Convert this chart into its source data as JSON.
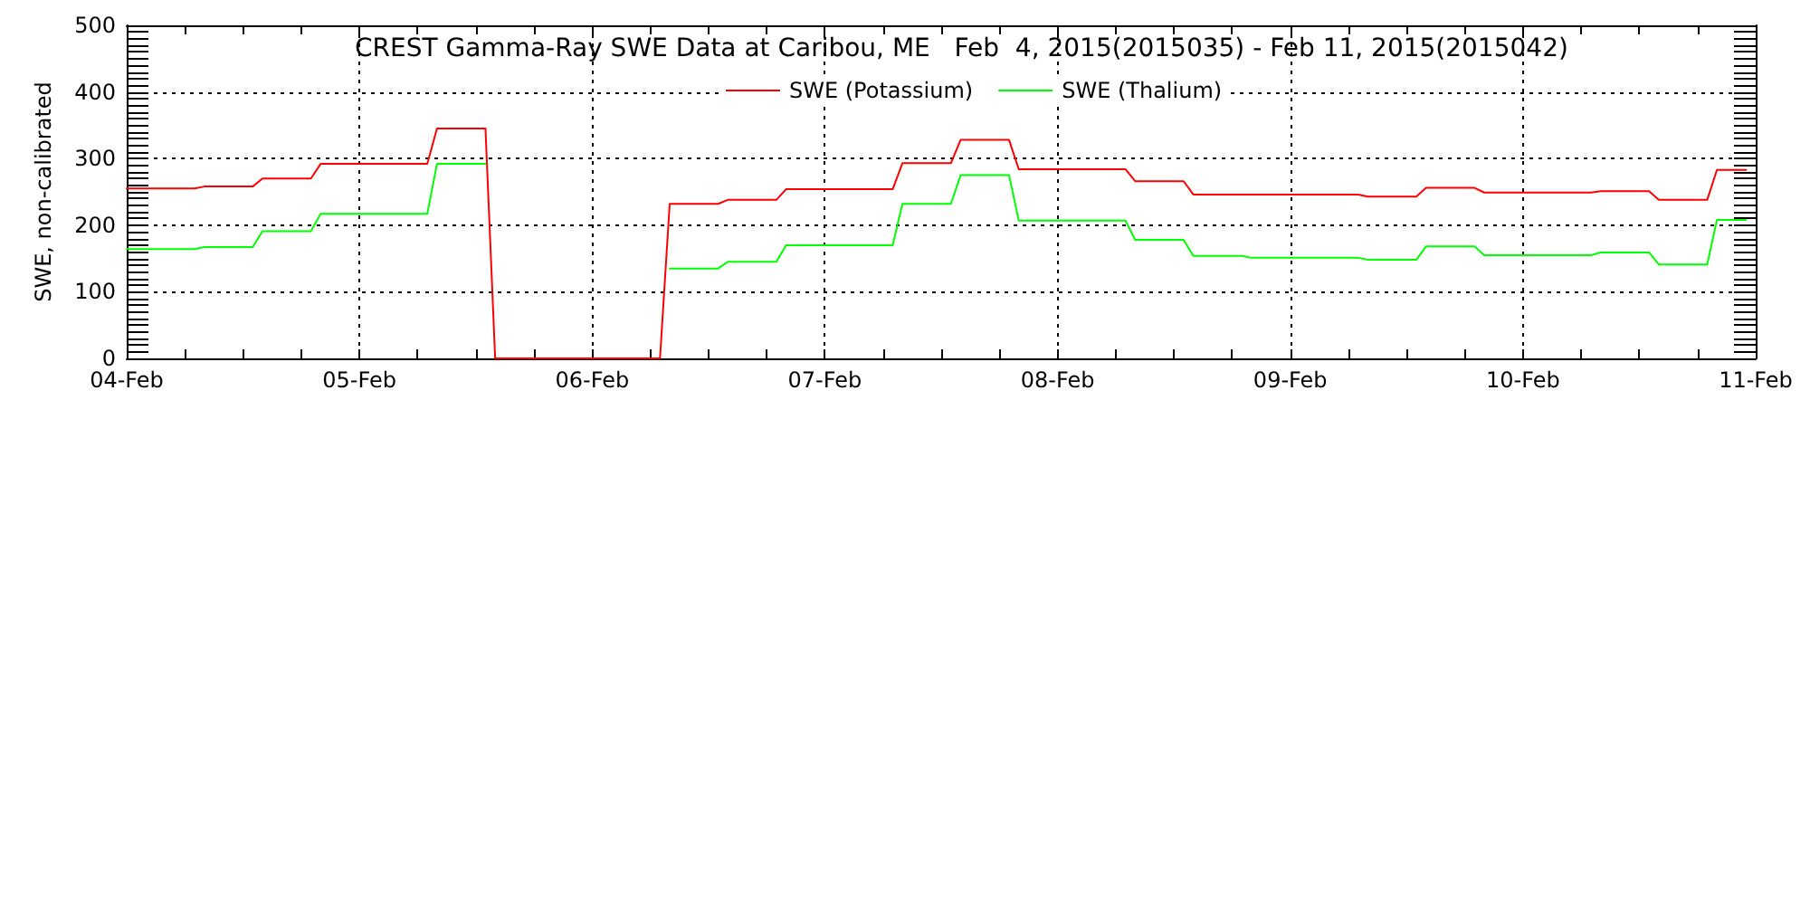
{
  "chart_data": {
    "type": "line",
    "title": "CREST Gamma-Ray SWE Data at Caribou, ME   Feb  4, 2015(2015035) - Feb 11, 2015(2015042)",
    "ylabel": "SWE, non-calibrated",
    "xlim": [
      "2015-02-04T00:00",
      "2015-02-11T00:00"
    ],
    "xticks": [
      {
        "value": "2015-02-04T00:00",
        "label": "04-Feb"
      },
      {
        "value": "2015-02-04T06:00",
        "label": null
      },
      {
        "value": "2015-02-04T12:00",
        "label": null
      },
      {
        "value": "2015-02-04T18:00",
        "label": null
      },
      {
        "value": "2015-02-05T00:00",
        "label": "05-Feb"
      },
      {
        "value": "2015-02-05T06:00",
        "label": null
      },
      {
        "value": "2015-02-05T12:00",
        "label": null
      },
      {
        "value": "2015-02-05T18:00",
        "label": null
      },
      {
        "value": "2015-02-06T00:00",
        "label": "06-Feb"
      },
      {
        "value": "2015-02-06T06:00",
        "label": null
      },
      {
        "value": "2015-02-06T12:00",
        "label": null
      },
      {
        "value": "2015-02-06T18:00",
        "label": null
      },
      {
        "value": "2015-02-07T00:00",
        "label": "07-Feb"
      },
      {
        "value": "2015-02-07T06:00",
        "label": null
      },
      {
        "value": "2015-02-07T12:00",
        "label": null
      },
      {
        "value": "2015-02-07T18:00",
        "label": null
      },
      {
        "value": "2015-02-08T00:00",
        "label": "08-Feb"
      },
      {
        "value": "2015-02-08T06:00",
        "label": null
      },
      {
        "value": "2015-02-08T12:00",
        "label": null
      },
      {
        "value": "2015-02-08T18:00",
        "label": null
      },
      {
        "value": "2015-02-09T00:00",
        "label": "09-Feb"
      },
      {
        "value": "2015-02-09T06:00",
        "label": null
      },
      {
        "value": "2015-02-09T12:00",
        "label": null
      },
      {
        "value": "2015-02-09T18:00",
        "label": null
      },
      {
        "value": "2015-02-10T00:00",
        "label": "10-Feb"
      },
      {
        "value": "2015-02-10T06:00",
        "label": null
      },
      {
        "value": "2015-02-10T12:00",
        "label": null
      },
      {
        "value": "2015-02-10T18:00",
        "label": null
      },
      {
        "value": "2015-02-11T00:00",
        "label": "11-Feb"
      }
    ],
    "ylim": [
      0,
      500
    ],
    "yticks": [
      0,
      {
        "value": 10,
        "label": null
      },
      {
        "value": 20,
        "label": null
      },
      {
        "value": 30,
        "label": null
      },
      {
        "value": 40,
        "label": null
      },
      {
        "value": 50,
        "label": null
      },
      {
        "value": 60,
        "label": null
      },
      {
        "value": 70,
        "label": null
      },
      {
        "value": 80,
        "label": null
      },
      {
        "value": 90,
        "label": null
      },
      100,
      {
        "value": 110,
        "label": null
      },
      {
        "value": 120,
        "label": null
      },
      {
        "value": 130,
        "label": null
      },
      {
        "value": 140,
        "label": null
      },
      {
        "value": 150,
        "label": null
      },
      {
        "value": 160,
        "label": null
      },
      {
        "value": 170,
        "label": null
      },
      {
        "value": 180,
        "label": null
      },
      {
        "value": 190,
        "label": null
      },
      200,
      {
        "value": 210,
        "label": null
      },
      {
        "value": 220,
        "label": null
      },
      {
        "value": 230,
        "label": null
      },
      {
        "value": 240,
        "label": null
      },
      {
        "value": 250,
        "label": null
      },
      {
        "value": 260,
        "label": null
      },
      {
        "value": 270,
        "label": null
      },
      {
        "value": 280,
        "label": null
      },
      {
        "value": 290,
        "label": null
      },
      300,
      {
        "value": 310,
        "label": null
      },
      {
        "value": 320,
        "label": null
      },
      {
        "value": 330,
        "label": null
      },
      {
        "value": 340,
        "label": null
      },
      {
        "value": 350,
        "label": null
      },
      {
        "value": 360,
        "label": null
      },
      {
        "value": 370,
        "label": null
      },
      {
        "value": 380,
        "label": null
      },
      {
        "value": 390,
        "label": null
      },
      400,
      {
        "value": 410,
        "label": null
      },
      {
        "value": 420,
        "label": null
      },
      {
        "value": 430,
        "label": null
      },
      {
        "value": 440,
        "label": null
      },
      {
        "value": 450,
        "label": null
      },
      {
        "value": 460,
        "label": null
      },
      {
        "value": 470,
        "label": null
      },
      {
        "value": 480,
        "label": null
      },
      {
        "value": 490,
        "label": null
      },
      500
    ],
    "grid": true,
    "legend": "top",
    "marker": "none",
    "line_style": "solid",
    "series": [
      {
        "name": "SWE (Potassium)",
        "color": "#ff0000",
        "x": [
          "2015-02-04T00:00",
          "2015-02-04T07:00",
          "2015-02-04T08:00",
          "2015-02-04T13:00",
          "2015-02-04T14:00",
          "2015-02-04T19:00",
          "2015-02-04T20:00",
          "2015-02-05T07:00",
          "2015-02-05T08:00",
          "2015-02-05T13:00",
          "2015-02-05T14:00",
          "2015-02-06T07:00",
          "2015-02-06T08:00",
          "2015-02-06T13:00",
          "2015-02-06T14:00",
          "2015-02-06T19:00",
          "2015-02-06T20:00",
          "2015-02-07T07:00",
          "2015-02-07T08:00",
          "2015-02-07T13:00",
          "2015-02-07T14:00",
          "2015-02-07T19:00",
          "2015-02-07T20:00",
          "2015-02-08T07:00",
          "2015-02-08T08:00",
          "2015-02-08T13:00",
          "2015-02-08T14:00",
          "2015-02-09T07:00",
          "2015-02-09T08:00",
          "2015-02-09T13:00",
          "2015-02-09T14:00",
          "2015-02-09T19:00",
          "2015-02-09T20:00",
          "2015-02-10T07:00",
          "2015-02-10T08:00",
          "2015-02-10T13:00",
          "2015-02-10T14:00",
          "2015-02-10T19:00",
          "2015-02-10T20:00",
          "2015-02-10T23:00"
        ],
        "values": [
          255,
          255,
          258,
          258,
          270,
          270,
          292,
          292,
          345,
          345,
          0,
          0,
          232,
          232,
          238,
          238,
          254,
          254,
          293,
          293,
          328,
          328,
          284,
          284,
          266,
          266,
          246,
          246,
          243,
          243,
          256,
          256,
          249,
          249,
          251,
          251,
          238,
          238,
          283,
          283
        ]
      },
      {
        "name": "SWE (Thalium)",
        "color": "#00ff00",
        "x": [
          "2015-02-04T00:00",
          "2015-02-04T07:00",
          "2015-02-04T08:00",
          "2015-02-04T13:00",
          "2015-02-04T14:00",
          "2015-02-04T19:00",
          "2015-02-04T20:00",
          "2015-02-05T07:00",
          "2015-02-05T08:00",
          "2015-02-05T13:00",
          "2015-02-05T14:00",
          "2015-02-06T08:00",
          "2015-02-06T13:00",
          "2015-02-06T14:00",
          "2015-02-06T19:00",
          "2015-02-06T20:00",
          "2015-02-07T07:00",
          "2015-02-07T08:00",
          "2015-02-07T13:00",
          "2015-02-07T14:00",
          "2015-02-07T19:00",
          "2015-02-07T20:00",
          "2015-02-08T07:00",
          "2015-02-08T08:00",
          "2015-02-08T13:00",
          "2015-02-08T14:00",
          "2015-02-08T19:00",
          "2015-02-08T20:00",
          "2015-02-09T07:00",
          "2015-02-09T08:00",
          "2015-02-09T13:00",
          "2015-02-09T14:00",
          "2015-02-09T19:00",
          "2015-02-09T20:00",
          "2015-02-10T07:00",
          "2015-02-10T08:00",
          "2015-02-10T13:00",
          "2015-02-10T14:00",
          "2015-02-10T19:00",
          "2015-02-10T20:00",
          "2015-02-10T23:00"
        ],
        "values": [
          164,
          164,
          167,
          167,
          191,
          191,
          217,
          217,
          292,
          292,
          null,
          135,
          135,
          145,
          145,
          170,
          170,
          232,
          232,
          275,
          275,
          207,
          207,
          178,
          178,
          154,
          154,
          151,
          151,
          148,
          148,
          168,
          168,
          155,
          155,
          159,
          159,
          141,
          141,
          208,
          208
        ]
      }
    ]
  }
}
